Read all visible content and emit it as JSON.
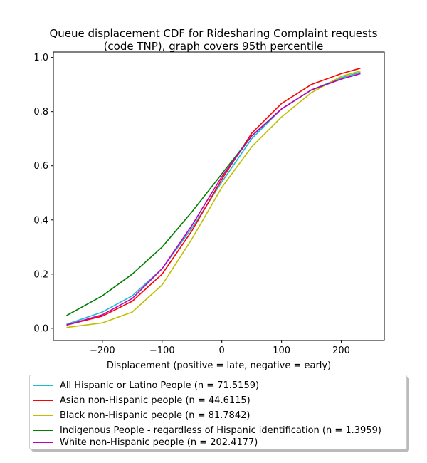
{
  "chart_data": {
    "type": "line",
    "title_lines": [
      "Queue displacement CDF for Ridesharing Complaint  requests",
      "(code TNP), graph covers 95th percentile"
    ],
    "xlabel": "Displacement (positive = late, negative = early)",
    "ylabel": "",
    "xlim": [
      -282,
      272
    ],
    "ylim": [
      -0.045,
      1.02
    ],
    "xticks": [
      -200,
      -100,
      0,
      100,
      200
    ],
    "yticks": [
      0.0,
      0.2,
      0.4,
      0.6,
      0.8,
      1.0
    ],
    "xtick_labels": [
      "−200",
      "−100",
      "0",
      "100",
      "200"
    ],
    "ytick_labels": [
      "0.0",
      "0.2",
      "0.4",
      "0.6",
      "0.8",
      "1.0"
    ],
    "grid": false,
    "legend_position": "below plot",
    "series": [
      {
        "name": "All Hispanic or Latino People (n = 71.5159)",
        "color": "#17becf",
        "x": [
          -260,
          -200,
          -150,
          -100,
          -50,
          0,
          50,
          100,
          150,
          200,
          232
        ],
        "y": [
          0.015,
          0.06,
          0.12,
          0.22,
          0.37,
          0.54,
          0.7,
          0.81,
          0.88,
          0.925,
          0.945
        ]
      },
      {
        "name": "Asian non-Hispanic people (n = 44.6115)",
        "color": "#ff0000",
        "x": [
          -260,
          -200,
          -150,
          -100,
          -50,
          0,
          50,
          100,
          150,
          200,
          232
        ],
        "y": [
          0.012,
          0.045,
          0.1,
          0.2,
          0.36,
          0.55,
          0.72,
          0.83,
          0.9,
          0.94,
          0.96
        ]
      },
      {
        "name": "Black non-Hispanic people (n = 81.7842)",
        "color": "#bfbf00",
        "x": [
          -260,
          -200,
          -150,
          -100,
          -50,
          0,
          50,
          100,
          150,
          200,
          232
        ],
        "y": [
          0.003,
          0.02,
          0.06,
          0.16,
          0.33,
          0.52,
          0.67,
          0.78,
          0.87,
          0.93,
          0.95
        ]
      },
      {
        "name": "Indigenous People - regardless of Hispanic identification (n = 1.3959)",
        "color": "#008000",
        "x": [
          -260,
          -200,
          -150,
          -100,
          -50,
          0,
          50,
          100,
          150,
          200,
          232
        ],
        "y": [
          0.047,
          0.12,
          0.2,
          0.3,
          0.43,
          0.57,
          0.71,
          0.81,
          0.88,
          0.92,
          0.94
        ]
      },
      {
        "name": "White non-Hispanic people (n = 202.4177)",
        "color": "#bf00bf",
        "x": [
          -260,
          -200,
          -150,
          -100,
          -50,
          0,
          50,
          100,
          150,
          200,
          232
        ],
        "y": [
          0.012,
          0.05,
          0.11,
          0.22,
          0.38,
          0.56,
          0.71,
          0.81,
          0.88,
          0.92,
          0.94
        ]
      }
    ]
  }
}
